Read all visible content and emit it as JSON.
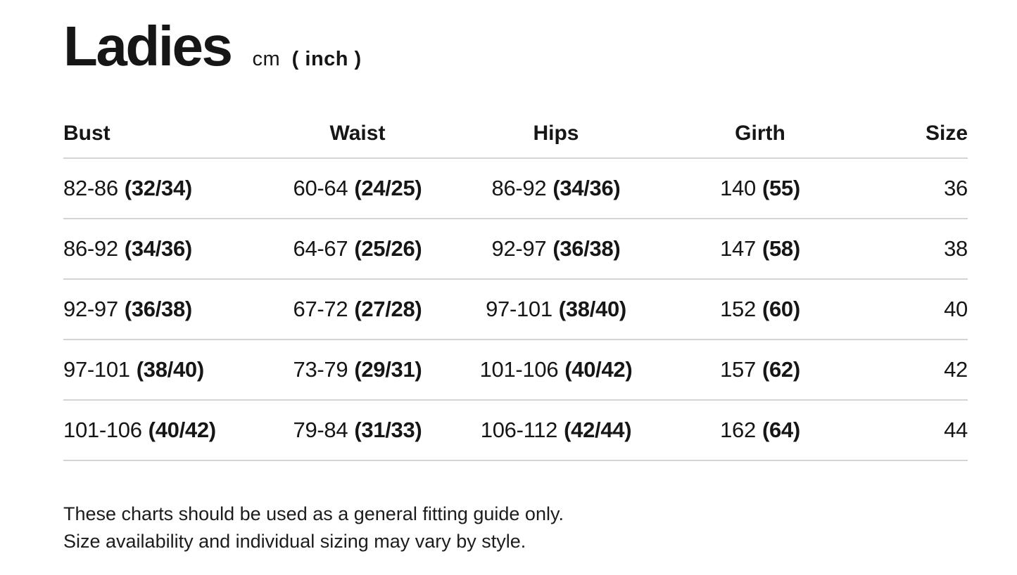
{
  "page": {
    "title": "Ladies",
    "unit_cm": "cm",
    "unit_inch": "( inch )"
  },
  "table": {
    "columns": [
      "Bust",
      "Waist",
      "Hips",
      "Girth",
      "Size"
    ],
    "rows": [
      {
        "bust_cm": "82-86",
        "bust_in": "(32/34)",
        "waist_cm": "60-64",
        "waist_in": "(24/25)",
        "hips_cm": "86-92",
        "hips_in": "(34/36)",
        "girth_cm": "140",
        "girth_in": "(55)",
        "size": "36"
      },
      {
        "bust_cm": "86-92",
        "bust_in": "(34/36)",
        "waist_cm": "64-67",
        "waist_in": "(25/26)",
        "hips_cm": "92-97",
        "hips_in": "(36/38)",
        "girth_cm": "147",
        "girth_in": "(58)",
        "size": "38"
      },
      {
        "bust_cm": "92-97",
        "bust_in": "(36/38)",
        "waist_cm": "67-72",
        "waist_in": "(27/28)",
        "hips_cm": "97-101",
        "hips_in": "(38/40)",
        "girth_cm": "152",
        "girth_in": "(60)",
        "size": "40"
      },
      {
        "bust_cm": "97-101",
        "bust_in": "(38/40)",
        "waist_cm": "73-79",
        "waist_in": "(29/31)",
        "hips_cm": "101-106",
        "hips_in": "(40/42)",
        "girth_cm": "157",
        "girth_in": "(62)",
        "size": "42"
      },
      {
        "bust_cm": "101-106",
        "bust_in": "(40/42)",
        "waist_cm": "79-84",
        "waist_in": "(31/33)",
        "hips_cm": "106-112",
        "hips_in": "(42/44)",
        "girth_cm": "162",
        "girth_in": "(64)",
        "size": "44"
      }
    ]
  },
  "footer": {
    "line1": "These charts should be used as a general fitting guide only.",
    "line2": "Size availability and individual sizing may vary by style."
  },
  "colors": {
    "text": "#161616",
    "divider": "#d4d4d4",
    "background": "#ffffff"
  },
  "chart_data": {
    "type": "table",
    "title": "Ladies cm ( inch )",
    "columns": [
      "Bust",
      "Waist",
      "Hips",
      "Girth",
      "Size"
    ],
    "rows": [
      [
        "82-86 (32/34)",
        "60-64 (24/25)",
        "86-92 (34/36)",
        "140 (55)",
        "36"
      ],
      [
        "86-92 (34/36)",
        "64-67 (25/26)",
        "92-97 (36/38)",
        "147 (58)",
        "38"
      ],
      [
        "92-97 (36/38)",
        "67-72 (27/28)",
        "97-101 (38/40)",
        "152 (60)",
        "40"
      ],
      [
        "97-101 (38/40)",
        "73-79 (29/31)",
        "101-106 (40/42)",
        "157 (62)",
        "42"
      ],
      [
        "101-106 (40/42)",
        "79-84 (31/33)",
        "106-112 (42/44)",
        "162 (64)",
        "44"
      ]
    ],
    "notes": [
      "These charts should be used as a general fitting guide only.",
      "Size availability and individual sizing may vary by style."
    ]
  }
}
